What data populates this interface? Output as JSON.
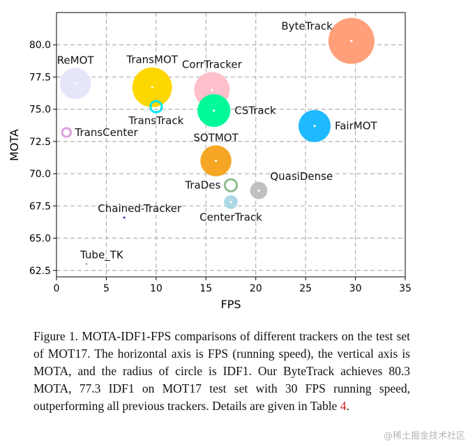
{
  "chart_data": {
    "type": "scatter",
    "xlabel": "FPS",
    "ylabel": "MOTA",
    "xlim": [
      0,
      35
    ],
    "ylim": [
      62,
      82.5
    ],
    "xticks": [
      0,
      5,
      10,
      15,
      20,
      25,
      30,
      35
    ],
    "xtick_labels": [
      "0",
      "5",
      "10",
      "15",
      "20",
      "25",
      "30",
      "35"
    ],
    "yticks": [
      62.5,
      65.0,
      67.5,
      70.0,
      72.5,
      75.0,
      77.5,
      80.0
    ],
    "ytick_labels": [
      "62.5",
      "65.0",
      "67.5",
      "70.0",
      "72.5",
      "75.0",
      "77.5",
      "80.0"
    ],
    "grid": true,
    "size_encoding": "IDF1",
    "points": [
      {
        "name": "ByteTrack",
        "fps": 29.6,
        "mota": 80.3,
        "idf1": 77.3,
        "color": "#FFA07A",
        "label_pos": "upper-left"
      },
      {
        "name": "ReMOT",
        "fps": 1.9,
        "mota": 77.0,
        "idf1": 72.0,
        "color": "#E6E6FA",
        "label_pos": "above"
      },
      {
        "name": "TransMOT",
        "fps": 9.6,
        "mota": 76.7,
        "idf1": 75.1,
        "color": "#FFD700",
        "label_pos": "above"
      },
      {
        "name": "CorrTracker",
        "fps": 15.6,
        "mota": 76.5,
        "idf1": 73.6,
        "color": "#FFC0CB",
        "label_pos": "above"
      },
      {
        "name": "TransTrack",
        "fps": 10.0,
        "mota": 75.2,
        "idf1": 63.5,
        "color": "#00E5EE",
        "label_pos": "below"
      },
      {
        "name": "CSTrack",
        "fps": 15.8,
        "mota": 74.9,
        "idf1": 72.6,
        "color": "#00FA9A",
        "label_pos": "right"
      },
      {
        "name": "FairMOT",
        "fps": 25.9,
        "mota": 73.7,
        "idf1": 72.3,
        "color": "#1EB9FF",
        "label_pos": "right"
      },
      {
        "name": "TransCenter",
        "fps": 1.0,
        "mota": 73.2,
        "idf1": 62.2,
        "color": "#DDA0DD",
        "label_pos": "right"
      },
      {
        "name": "SOTMOT",
        "fps": 16.0,
        "mota": 71.0,
        "idf1": 71.9,
        "color": "#F5A623",
        "label_pos": "above"
      },
      {
        "name": "TraDes",
        "fps": 17.5,
        "mota": 69.1,
        "idf1": 63.9,
        "color": "#8FBC8F",
        "label_pos": "left"
      },
      {
        "name": "QuasiDense",
        "fps": 20.3,
        "mota": 68.7,
        "idf1": 66.3,
        "color": "#C0C0C0",
        "label_pos": "upper-right"
      },
      {
        "name": "CenterTrack",
        "fps": 17.5,
        "mota": 67.8,
        "idf1": 64.7,
        "color": "#ADD8E6",
        "label_pos": "below"
      },
      {
        "name": "Chained-Tracker",
        "fps": 6.8,
        "mota": 66.6,
        "idf1": 57.4,
        "color": "#3A2FB5",
        "label_pos": "upper-left"
      },
      {
        "name": "Tube_TK",
        "fps": 3.0,
        "mota": 63.0,
        "idf1": 58.6,
        "color": "#C8C8C8",
        "label_pos": "upper-left"
      }
    ]
  },
  "caption": {
    "text": "Figure 1. MOTA-IDF1-FPS comparisons of different trackers on the test set of MOT17. The horizontal axis is FPS (running speed), the vertical axis is MOTA, and the radius of circle is IDF1. Our ByteTrack achieves 80.3 MOTA, 77.3 IDF1 on MOT17 test set with 30 FPS running speed, outperforming all previous trackers. Details are given in Table ",
    "table_ref": "4",
    "end": "."
  },
  "watermark": "@稀土掘金技术社区"
}
